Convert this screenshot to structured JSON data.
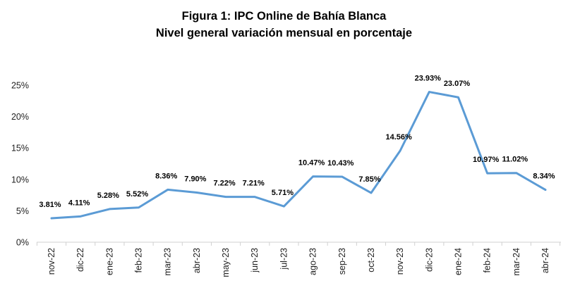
{
  "chart_data": {
    "type": "line",
    "title": "Figura 1: IPC Online de Bahía Blanca",
    "subtitle": "Nivel general variación mensual en porcentaje",
    "xlabel": "",
    "ylabel": "",
    "categories": [
      "nov-22",
      "dic-22",
      "ene-23",
      "feb-23",
      "mar-23",
      "abr-23",
      "may-23",
      "jun-23",
      "jul-23",
      "ago-23",
      "sep-23",
      "oct-23",
      "nov-23",
      "dic-23",
      "ene-24",
      "feb-24",
      "mar-24",
      "abr-24"
    ],
    "series": [
      {
        "values": [
          3.81,
          4.11,
          5.28,
          5.52,
          8.36,
          7.9,
          7.22,
          7.21,
          5.71,
          10.47,
          10.43,
          7.85,
          14.56,
          23.93,
          23.07,
          10.97,
          11.02,
          8.34
        ],
        "data_labels": [
          "3.81%",
          "4.11%",
          "5.28%",
          "5.52%",
          "8.36%",
          "7.90%",
          "7.22%",
          "7.21%",
          "5.71%",
          "10.47%",
          "10.43%",
          "7.85%",
          "14.56%",
          "23.93%",
          "23.07%",
          "10.97%",
          "11.02%",
          "8.34%"
        ],
        "color": "#5b9bd5"
      }
    ],
    "ylim": [
      0,
      25
    ],
    "yticks": [
      0,
      5,
      10,
      15,
      20,
      25
    ],
    "ytick_labels": [
      "0%",
      "5%",
      "10%",
      "15%",
      "20%",
      "25%"
    ],
    "grid": false,
    "legend": "none"
  }
}
